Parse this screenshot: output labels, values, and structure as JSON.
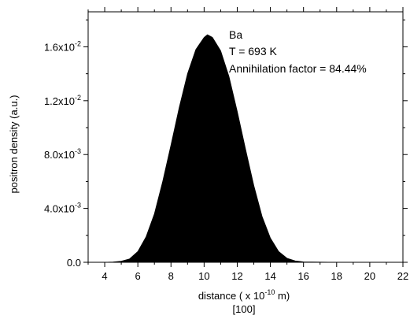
{
  "chart_data": {
    "type": "area",
    "xlabel_prefix": "distance ( x 10",
    "xlabel_exp": "-10",
    "xlabel_suffix": " m)",
    "xlabel_line2": "[100]",
    "ylabel": "positron density (a.u.)",
    "xlim": [
      3,
      22
    ],
    "ylim": [
      0,
      0.0186
    ],
    "x_ticks": [
      4,
      6,
      8,
      10,
      12,
      14,
      16,
      18,
      20,
      22
    ],
    "y_ticks": [
      {
        "value": 0,
        "mantissa": "0.0",
        "exp": ""
      },
      {
        "value": 0.004,
        "mantissa": "4.0x10",
        "exp": "-3"
      },
      {
        "value": 0.008,
        "mantissa": "8.0x10",
        "exp": "-3"
      },
      {
        "value": 0.012,
        "mantissa": "1.2x10",
        "exp": "-2"
      },
      {
        "value": 0.016,
        "mantissa": "1.6x10",
        "exp": "-2"
      }
    ],
    "annotations": [
      "Ba",
      "T = 693 K",
      "Annihilation factor = 84.44%"
    ],
    "series": [
      {
        "fill": "#000000",
        "points": [
          [
            3.0,
            0
          ],
          [
            4.0,
            0
          ],
          [
            4.5,
            2e-05
          ],
          [
            5.0,
            8e-05
          ],
          [
            5.5,
            0.00025
          ],
          [
            6.0,
            0.0008
          ],
          [
            6.5,
            0.0019
          ],
          [
            7.0,
            0.0036
          ],
          [
            7.5,
            0.006
          ],
          [
            8.0,
            0.0087
          ],
          [
            8.5,
            0.0115
          ],
          [
            9.0,
            0.014
          ],
          [
            9.5,
            0.0158
          ],
          [
            10.0,
            0.0167
          ],
          [
            10.2,
            0.0169
          ],
          [
            10.5,
            0.0167
          ],
          [
            11.0,
            0.0157
          ],
          [
            11.5,
            0.0138
          ],
          [
            12.0,
            0.0112
          ],
          [
            12.5,
            0.0084
          ],
          [
            13.0,
            0.0057
          ],
          [
            13.5,
            0.0034
          ],
          [
            14.0,
            0.0018
          ],
          [
            14.5,
            0.0008
          ],
          [
            15.0,
            0.0003
          ],
          [
            15.5,
            0.0001
          ],
          [
            16.0,
            3e-05
          ],
          [
            17.0,
            1e-05
          ],
          [
            18.0,
            0
          ],
          [
            22.0,
            0
          ]
        ]
      }
    ]
  }
}
